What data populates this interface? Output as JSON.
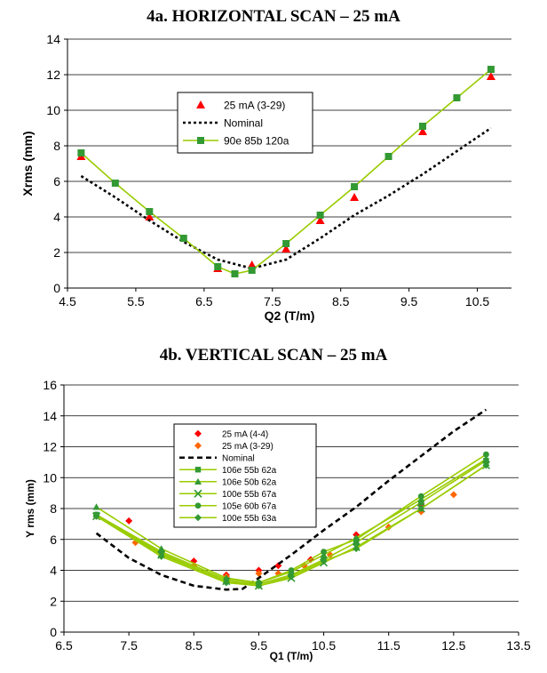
{
  "chart_data": [
    {
      "type": "line",
      "title": "4a. HORIZONTAL SCAN – 25 mA",
      "xlabel": "Q2 (T/m)",
      "ylabel": "Xrms (mm)",
      "xlim": [
        4.5,
        11.0
      ],
      "ylim": [
        0,
        14
      ],
      "xticks": [
        4.5,
        5.5,
        6.5,
        7.5,
        8.5,
        9.5,
        10.5
      ],
      "xtick_labels": [
        "4.5",
        "5.5",
        "6.5",
        "7.5",
        "8.5",
        "9.5",
        "10.5"
      ],
      "yticks": [
        0,
        2,
        4,
        6,
        8,
        10,
        12,
        14
      ],
      "ytick_labels": [
        "0",
        "2",
        "4",
        "6",
        "8",
        "10",
        "12",
        "14"
      ],
      "grid": "horizontal",
      "legend_position": "upper-left-center",
      "series": [
        {
          "name": "25 mA (3-29)",
          "mode": "markers",
          "marker": "triangle",
          "color": "#ff0000",
          "x": [
            4.7,
            5.7,
            6.7,
            7.2,
            7.7,
            8.2,
            8.7,
            9.7,
            10.7
          ],
          "y": [
            7.4,
            4.0,
            1.1,
            1.3,
            2.2,
            3.8,
            5.1,
            8.8,
            11.9
          ]
        },
        {
          "name": "Nominal",
          "mode": "line",
          "dash": "dotted",
          "color": "#000000",
          "x": [
            4.7,
            5.2,
            5.7,
            6.2,
            6.7,
            7.2,
            7.7,
            8.2,
            8.7,
            9.2,
            9.7,
            10.2,
            10.7
          ],
          "y": [
            6.3,
            5.1,
            3.8,
            2.6,
            1.6,
            1.1,
            1.6,
            2.8,
            4.1,
            5.2,
            6.4,
            7.7,
            9.0
          ]
        },
        {
          "name": "90e 85b 120a",
          "mode": "line+markers",
          "marker": "square",
          "color": "#99cc00",
          "marker_color": "#339933",
          "x": [
            4.7,
            5.2,
            5.7,
            6.2,
            6.7,
            6.95,
            7.2,
            7.7,
            8.2,
            8.7,
            9.2,
            9.7,
            10.2,
            10.7
          ],
          "y": [
            7.6,
            5.9,
            4.3,
            2.8,
            1.2,
            0.8,
            1.0,
            2.5,
            4.1,
            5.7,
            7.4,
            9.1,
            10.7,
            12.3
          ]
        }
      ]
    },
    {
      "type": "line",
      "title": "4b. VERTICAL SCAN – 25 mA",
      "xlabel": "Q1 (T/m)",
      "ylabel": "Y rms (mm)",
      "xlim": [
        6.5,
        13.5
      ],
      "ylim": [
        0,
        16
      ],
      "xticks": [
        6.5,
        7.5,
        8.5,
        9.5,
        10.5,
        11.5,
        12.5,
        13.5
      ],
      "xtick_labels": [
        "6.5",
        "7.5",
        "8.5",
        "9.5",
        "10.5",
        "11.5",
        "12.5",
        "13.5"
      ],
      "yticks": [
        0,
        2,
        4,
        6,
        8,
        10,
        12,
        14,
        16
      ],
      "ytick_labels": [
        "0",
        "2",
        "4",
        "6",
        "8",
        "10",
        "12",
        "14",
        "16"
      ],
      "grid": "horizontal",
      "legend_position": "upper-left-center",
      "series": [
        {
          "name": "25 mA (4-4)",
          "mode": "markers",
          "marker": "diamond",
          "color": "#ff0000",
          "x": [
            7.5,
            8.5,
            9.0,
            9.5,
            9.8,
            10.3,
            10.5,
            11.0,
            12.0
          ],
          "y": [
            7.2,
            4.6,
            3.7,
            4.0,
            4.3,
            4.7,
            4.6,
            6.3,
            8.3
          ]
        },
        {
          "name": "25 mA (3-29)",
          "mode": "markers",
          "marker": "diamond",
          "color": "#ff6600",
          "x": [
            7.0,
            7.6,
            8.5,
            9.0,
            9.5,
            9.8,
            10.2,
            10.6,
            11.5,
            12.0,
            12.5,
            13.0
          ],
          "y": [
            7.5,
            5.8,
            4.3,
            3.6,
            3.8,
            3.8,
            4.3,
            5.0,
            6.8,
            7.8,
            8.9,
            11.0
          ]
        },
        {
          "name": "Nominal",
          "mode": "line",
          "dash": "dashed",
          "color": "#000000",
          "x": [
            7.0,
            7.5,
            8.0,
            8.5,
            9.0,
            9.25,
            9.5,
            10.0,
            10.5,
            11.0,
            11.5,
            12.0,
            12.5,
            13.0
          ],
          "y": [
            6.4,
            4.8,
            3.7,
            3.0,
            2.75,
            2.8,
            3.5,
            5.0,
            6.6,
            8.1,
            9.8,
            11.4,
            13.0,
            14.4
          ]
        },
        {
          "name": "106e 55b 62a",
          "mode": "line+markers",
          "marker": "square",
          "color": "#99cc00",
          "marker_color": "#339933",
          "x": [
            7.0,
            8.0,
            9.0,
            9.5,
            10.0,
            10.5,
            11.0,
            12.0,
            13.0
          ],
          "y": [
            7.6,
            5.1,
            3.3,
            3.1,
            3.7,
            4.7,
            5.8,
            8.4,
            11.1
          ]
        },
        {
          "name": "106e 50b 62a",
          "mode": "line+markers",
          "marker": "triangle",
          "color": "#99cc00",
          "marker_color": "#339933",
          "x": [
            7.0,
            8.0,
            9.0,
            9.5,
            10.0,
            10.5,
            11.0,
            12.0,
            13.0
          ],
          "y": [
            8.1,
            5.4,
            3.5,
            3.2,
            3.9,
            5.0,
            6.1,
            8.6,
            11.2
          ]
        },
        {
          "name": "100e 55b 67a",
          "mode": "line+markers",
          "marker": "x",
          "color": "#99cc00",
          "marker_color": "#339933",
          "x": [
            7.0,
            8.0,
            9.0,
            9.5,
            10.0,
            10.5,
            11.0,
            12.0,
            13.0
          ],
          "y": [
            7.5,
            5.0,
            3.3,
            3.0,
            3.5,
            4.5,
            5.5,
            8.0,
            10.8
          ]
        },
        {
          "name": "105e 60b 67a",
          "mode": "line+markers",
          "marker": "circle",
          "color": "#99cc00",
          "marker_color": "#339933",
          "x": [
            7.0,
            8.0,
            9.0,
            9.5,
            10.0,
            10.5,
            11.0,
            12.0,
            13.0
          ],
          "y": [
            7.6,
            5.2,
            3.4,
            3.2,
            4.0,
            5.2,
            6.0,
            8.8,
            11.5
          ]
        },
        {
          "name": "100e 55b 63a",
          "mode": "line+markers",
          "marker": "diamond",
          "color": "#99cc00",
          "marker_color": "#339933",
          "x": [
            7.0,
            8.0,
            9.0,
            9.5,
            10.0,
            10.5,
            11.0,
            12.0,
            13.0
          ],
          "y": [
            7.5,
            4.9,
            3.2,
            3.0,
            3.6,
            4.6,
            5.4,
            8.0,
            10.8
          ]
        }
      ]
    }
  ]
}
